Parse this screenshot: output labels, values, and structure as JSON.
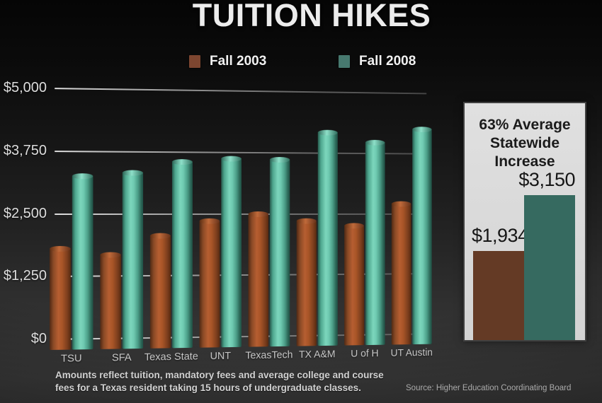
{
  "title": "TUITION HIKES",
  "legend": [
    {
      "label": "Fall 2003",
      "color": "#7d4630"
    },
    {
      "label": "Fall 2008",
      "color": "#47796f"
    }
  ],
  "chart_data": {
    "type": "bar",
    "title": "TUITION HIKES",
    "categories": [
      "TSU",
      "SFA",
      "Texas State",
      "UNT",
      "TexasTech",
      "TX A&M",
      "U of H",
      "UT Austin"
    ],
    "series": [
      {
        "name": "Fall 2003",
        "color": "#a8552c",
        "values": [
          1800,
          1675,
          2050,
          2350,
          2500,
          2350,
          2250,
          2700
        ]
      },
      {
        "name": "Fall 2008",
        "color": "#64c3ab",
        "values": [
          3250,
          3325,
          3550,
          3625,
          3600,
          4175,
          3975,
          4250
        ]
      }
    ],
    "ylabel_ticks": [
      "$5,000",
      "$3,750",
      "$2,500",
      "$1,250",
      "$0"
    ],
    "ytick_values": [
      5000,
      3750,
      2500,
      1250,
      0
    ],
    "ylim": [
      0,
      5000
    ],
    "grid": true,
    "legend_position": "top"
  },
  "panel": {
    "heading_line1": "63% Average",
    "heading_line2": "Statewide Increase",
    "bars": [
      {
        "label": "$1,934",
        "value": 1934,
        "color": "#643a25"
      },
      {
        "label": "$3,150",
        "value": 3150,
        "color": "#366a60"
      }
    ]
  },
  "note_line1": "Amounts reflect tuition, mandatory fees and average college and course",
  "note_line2": "fees for a Texas resident taking 15 hours of undergraduate classes.",
  "source": "Source: Higher Education Coordinating Board"
}
